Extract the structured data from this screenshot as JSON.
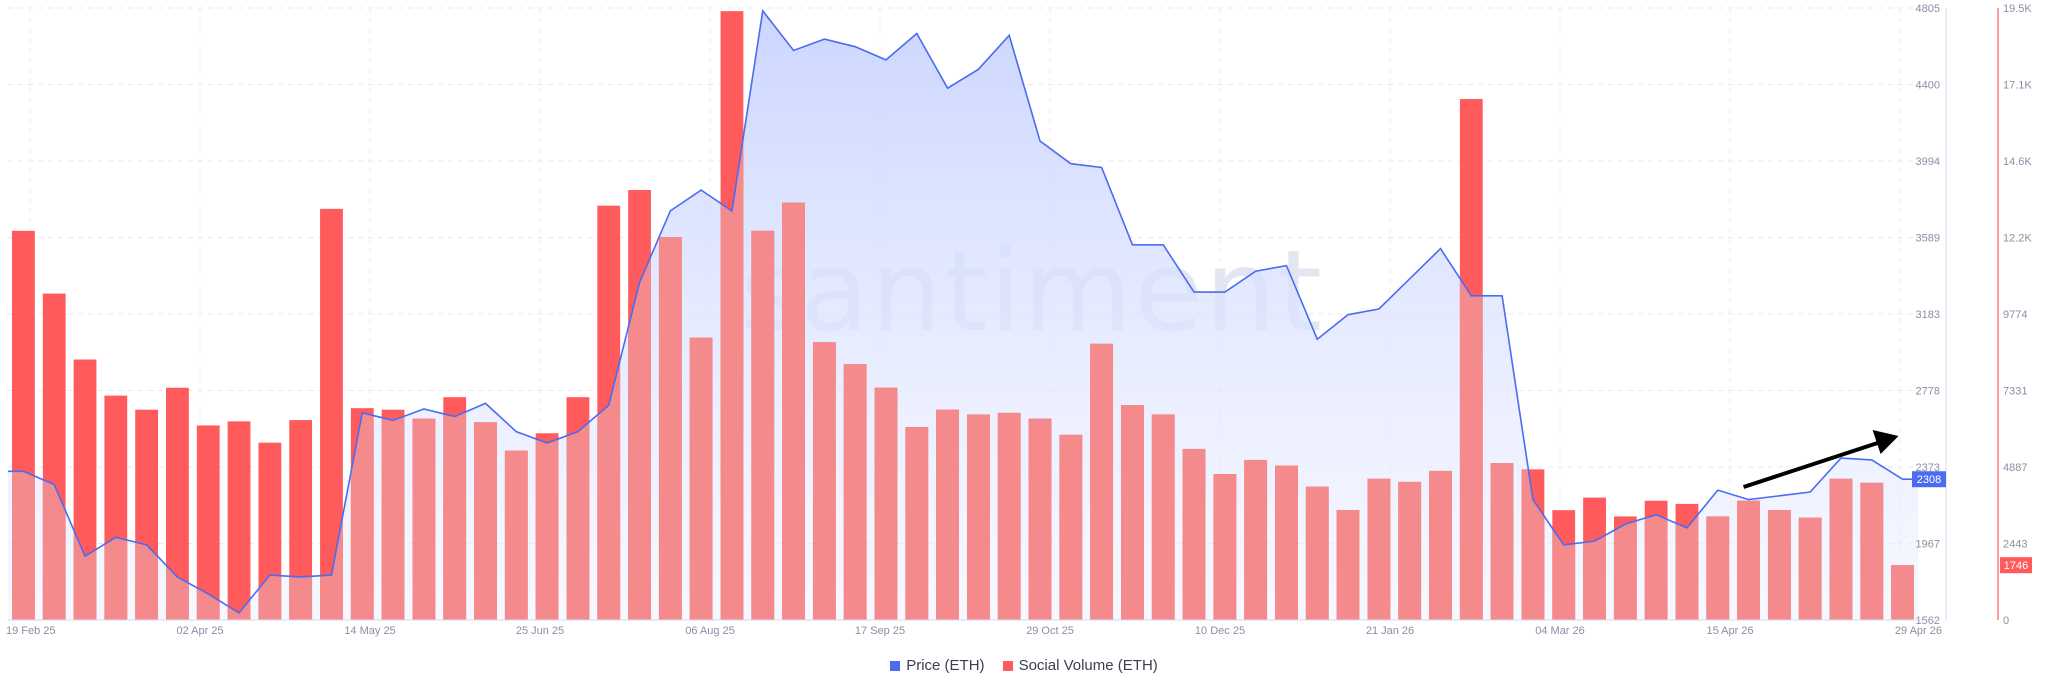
{
  "watermark": "santiment",
  "legend": {
    "price": "Price (ETH)",
    "volume": "Social Volume (ETH)"
  },
  "colors": {
    "price_line": "#4a6cf0",
    "price_fill": "#c9d4ff",
    "volume_bar": "#ff5a5c",
    "volume_bar_light": "#f58a8d",
    "arrow": "#000000"
  },
  "chart_data": {
    "type": "bar",
    "x_tick_labels": [
      "19 Feb 25",
      "02 Apr 25",
      "14 May 25",
      "25 Jun 25",
      "06 Aug 25",
      "17 Sep 25",
      "29 Oct 25",
      "10 Dec 25",
      "21 Jan 26",
      "04 Mar 26",
      "15 Apr 26",
      "29 Apr 26"
    ],
    "price_axis": {
      "ticks": [
        "4805",
        "4400",
        "3994",
        "3589",
        "3183",
        "2778",
        "2373",
        "1967",
        "1562"
      ],
      "range": [
        1562,
        4805
      ],
      "current": "2308"
    },
    "volume_axis": {
      "ticks": [
        "19.5K",
        "17.1K",
        "14.6K",
        "12.2K",
        "9774",
        "7331",
        "4887",
        "2443",
        "0"
      ],
      "range": [
        0,
        19500
      ],
      "current": "1746"
    },
    "series": [
      {
        "name": "Social Volume (ETH)",
        "values": [
          12400,
          10400,
          8300,
          7150,
          6700,
          7400,
          6200,
          6330,
          5650,
          6370,
          13100,
          6750,
          6700,
          6420,
          7100,
          6300,
          5400,
          5950,
          7100,
          13200,
          13700,
          12200,
          9000,
          19400,
          12400,
          13300,
          8850,
          8150,
          7400,
          6150,
          6700,
          6550,
          6600,
          6420,
          5900,
          8800,
          6850,
          6550,
          5450,
          4650,
          5100,
          4920,
          4250,
          3500,
          4500,
          4400,
          4750,
          16600,
          5000,
          4800,
          3500,
          3900,
          3300,
          3800,
          3700,
          3300,
          3800,
          3500,
          3260,
          4500,
          4370,
          1746
        ],
        "color_split": "bars are bright red above the price area and faded pink where they overlap the price area"
      },
      {
        "name": "Price (ETH)",
        "values": [
          2350,
          2280,
          1900,
          2000,
          1960,
          1790,
          1700,
          1600,
          1800,
          1790,
          1800,
          2660,
          2620,
          2680,
          2640,
          2710,
          2560,
          2500,
          2560,
          2700,
          3350,
          3730,
          3840,
          3730,
          4790,
          4580,
          4640,
          4600,
          4530,
          4670,
          4380,
          4480,
          4660,
          4100,
          3980,
          3960,
          3550,
          3550,
          3300,
          3300,
          3410,
          3440,
          3050,
          3180,
          3210,
          3370,
          3530,
          3280,
          3280,
          2200,
          1960,
          1980,
          2070,
          2120,
          2050,
          2250,
          2200,
          2220,
          2240,
          2420,
          2410,
          2308
        ]
      }
    ],
    "annotation": "black upward arrow near latest data",
    "grid": true
  }
}
